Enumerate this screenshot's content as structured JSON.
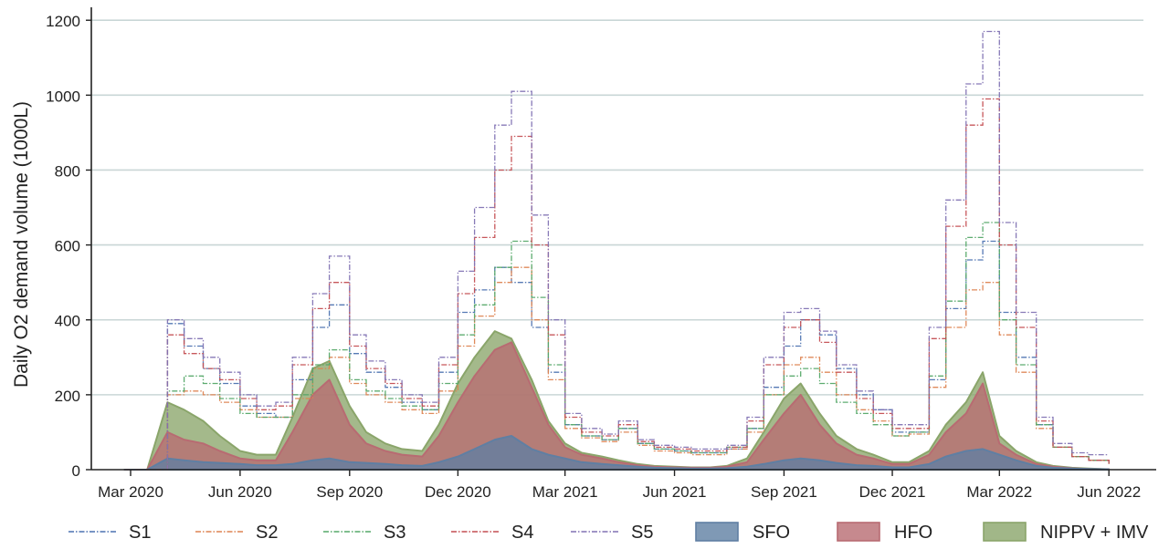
{
  "chart_data": {
    "type": "area",
    "ylabel": "Daily O2 demand volume (1000L)",
    "xlabel": "",
    "ylim": [
      0,
      1220
    ],
    "yticks": [
      0,
      200,
      400,
      600,
      800,
      1000,
      1200
    ],
    "xlim": [
      "2020-01-28",
      "2022-06-30"
    ],
    "xticks": [
      {
        "date": "2020-03-01",
        "label": "Mar 2020"
      },
      {
        "date": "2020-06-01",
        "label": "Jun 2020"
      },
      {
        "date": "2020-09-01",
        "label": "Sep 2020"
      },
      {
        "date": "2020-12-01",
        "label": "Dec 2020"
      },
      {
        "date": "2021-03-01",
        "label": "Mar 2021"
      },
      {
        "date": "2021-06-01",
        "label": "Jun 2021"
      },
      {
        "date": "2021-09-01",
        "label": "Sep 2021"
      },
      {
        "date": "2021-12-01",
        "label": "Dec 2021"
      },
      {
        "date": "2022-03-01",
        "label": "Mar 2022"
      },
      {
        "date": "2022-06-01",
        "label": "Jun 2022"
      }
    ],
    "grid": "horizontal",
    "legend_position": "bottom",
    "x": [
      "2020-02-25",
      "2020-03-15",
      "2020-04-01",
      "2020-04-15",
      "2020-05-01",
      "2020-05-15",
      "2020-06-01",
      "2020-06-15",
      "2020-07-01",
      "2020-07-15",
      "2020-08-01",
      "2020-08-15",
      "2020-09-01",
      "2020-09-15",
      "2020-10-01",
      "2020-10-15",
      "2020-11-01",
      "2020-11-15",
      "2020-12-01",
      "2020-12-15",
      "2021-01-01",
      "2021-01-15",
      "2021-02-01",
      "2021-02-15",
      "2021-03-01",
      "2021-03-15",
      "2021-04-01",
      "2021-04-15",
      "2021-05-01",
      "2021-05-15",
      "2021-06-01",
      "2021-06-15",
      "2021-07-01",
      "2021-07-15",
      "2021-08-01",
      "2021-08-15",
      "2021-09-01",
      "2021-09-15",
      "2021-10-01",
      "2021-10-15",
      "2021-11-01",
      "2021-11-15",
      "2021-12-01",
      "2021-12-15",
      "2022-01-01",
      "2022-01-15",
      "2022-02-01",
      "2022-02-15",
      "2022-03-01",
      "2022-03-15",
      "2022-04-01",
      "2022-04-15",
      "2022-05-01",
      "2022-05-15",
      "2022-06-01"
    ],
    "series": [
      {
        "name": "S1",
        "kind": "line",
        "color": "#4c72b0",
        "values": [
          0,
          0,
          390,
          330,
          270,
          230,
          170,
          150,
          140,
          240,
          380,
          440,
          310,
          260,
          220,
          180,
          160,
          260,
          420,
          480,
          540,
          500,
          380,
          260,
          120,
          90,
          80,
          110,
          70,
          55,
          50,
          45,
          45,
          55,
          110,
          220,
          330,
          400,
          360,
          270,
          200,
          160,
          100,
          100,
          240,
          430,
          560,
          610,
          420,
          300,
          120,
          60,
          35,
          25,
          15
        ]
      },
      {
        "name": "S2",
        "kind": "line",
        "color": "#dd8452",
        "values": [
          0,
          0,
          200,
          210,
          200,
          180,
          160,
          140,
          140,
          190,
          270,
          300,
          230,
          200,
          180,
          160,
          150,
          210,
          330,
          410,
          500,
          540,
          400,
          240,
          110,
          85,
          75,
          100,
          65,
          50,
          45,
          40,
          40,
          55,
          100,
          200,
          280,
          300,
          260,
          200,
          160,
          130,
          90,
          95,
          220,
          380,
          480,
          500,
          360,
          260,
          110,
          60,
          35,
          25,
          15
        ]
      },
      {
        "name": "S3",
        "kind": "line",
        "color": "#55a868",
        "values": [
          0,
          0,
          210,
          250,
          230,
          190,
          150,
          140,
          140,
          200,
          280,
          320,
          240,
          210,
          190,
          170,
          160,
          230,
          360,
          440,
          540,
          610,
          460,
          280,
          120,
          90,
          80,
          110,
          70,
          55,
          50,
          45,
          45,
          60,
          110,
          200,
          250,
          270,
          230,
          180,
          150,
          120,
          90,
          100,
          250,
          450,
          620,
          660,
          400,
          280,
          120,
          60,
          35,
          25,
          15
        ]
      },
      {
        "name": "S4",
        "kind": "line",
        "color": "#c44e52",
        "values": [
          0,
          0,
          360,
          310,
          270,
          240,
          190,
          160,
          170,
          280,
          430,
          500,
          330,
          270,
          230,
          190,
          170,
          280,
          470,
          620,
          800,
          890,
          600,
          360,
          140,
          100,
          90,
          120,
          75,
          60,
          55,
          50,
          50,
          60,
          130,
          280,
          380,
          400,
          340,
          260,
          190,
          150,
          110,
          110,
          350,
          650,
          920,
          990,
          600,
          380,
          130,
          60,
          35,
          25,
          15
        ]
      },
      {
        "name": "S5",
        "kind": "line",
        "color": "#8172b3",
        "values": [
          0,
          0,
          400,
          350,
          300,
          260,
          200,
          170,
          180,
          300,
          470,
          570,
          360,
          290,
          240,
          200,
          180,
          300,
          530,
          700,
          920,
          1010,
          680,
          400,
          150,
          110,
          95,
          130,
          80,
          65,
          60,
          55,
          55,
          65,
          140,
          300,
          420,
          430,
          370,
          280,
          210,
          160,
          120,
          120,
          380,
          720,
          1030,
          1170,
          660,
          420,
          140,
          70,
          45,
          40,
          40
        ]
      },
      {
        "name": "SFO",
        "kind": "area",
        "color": "#5f7fa3",
        "values": [
          0,
          0,
          30,
          25,
          20,
          18,
          15,
          12,
          12,
          15,
          25,
          30,
          20,
          18,
          15,
          12,
          10,
          20,
          35,
          55,
          80,
          90,
          55,
          40,
          30,
          20,
          15,
          12,
          8,
          5,
          4,
          3,
          3,
          4,
          8,
          15,
          25,
          30,
          25,
          18,
          12,
          10,
          6,
          6,
          15,
          35,
          50,
          55,
          40,
          25,
          10,
          5,
          3,
          2,
          1
        ]
      },
      {
        "name": "HFO",
        "kind": "area",
        "color": "#b86b72",
        "values": [
          0,
          0,
          100,
          80,
          70,
          50,
          30,
          25,
          25,
          100,
          200,
          240,
          120,
          70,
          50,
          40,
          35,
          90,
          180,
          250,
          320,
          340,
          220,
          120,
          60,
          40,
          30,
          20,
          12,
          8,
          6,
          5,
          5,
          8,
          20,
          80,
          150,
          200,
          120,
          70,
          40,
          30,
          15,
          15,
          40,
          100,
          150,
          230,
          70,
          40,
          15,
          8,
          4,
          2,
          1
        ]
      },
      {
        "name": "NIPPV + IMV",
        "kind": "area",
        "color": "#8aa56a",
        "values": [
          0,
          0,
          180,
          160,
          130,
          90,
          50,
          40,
          40,
          140,
          270,
          290,
          170,
          100,
          70,
          55,
          50,
          120,
          230,
          300,
          370,
          350,
          240,
          130,
          70,
          45,
          35,
          25,
          15,
          10,
          8,
          6,
          6,
          10,
          30,
          100,
          190,
          230,
          150,
          90,
          55,
          40,
          20,
          20,
          50,
          120,
          180,
          260,
          90,
          50,
          20,
          10,
          5,
          3,
          1
        ]
      }
    ]
  }
}
